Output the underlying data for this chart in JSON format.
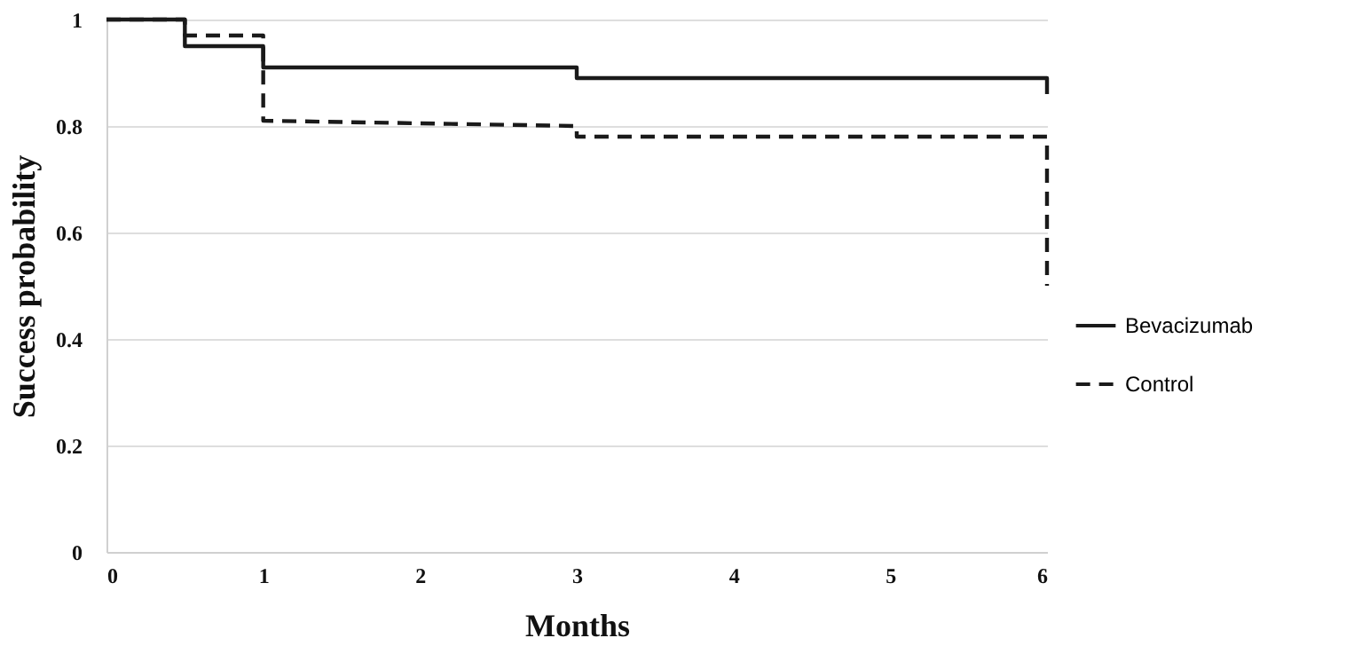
{
  "chart_data": {
    "type": "line",
    "xlabel": "Months",
    "ylabel": "Success probability",
    "xlim": [
      0,
      6
    ],
    "xticks": [
      0,
      1,
      2,
      3,
      4,
      5,
      6
    ],
    "ylim": [
      0,
      1
    ],
    "yticks": [
      0,
      0.2,
      0.4,
      0.6,
      0.8,
      1
    ],
    "grid": "y",
    "legend": "right",
    "marker": "none",
    "series": [
      {
        "name": "Bevacizumab",
        "color": "#1a1a1a",
        "line_style": "solid",
        "x": [
          0,
          0.5,
          0.5,
          1,
          1,
          3,
          3,
          6,
          6
        ],
        "values": [
          1,
          1,
          0.95,
          0.95,
          0.91,
          0.91,
          0.89,
          0.89,
          0.86
        ]
      },
      {
        "name": "Control",
        "color": "#1a1a1a",
        "line_style": "dashed",
        "x": [
          0,
          0.5,
          0.5,
          1,
          1,
          3,
          3,
          6,
          6
        ],
        "values": [
          1,
          1,
          0.97,
          0.97,
          0.81,
          0.8,
          0.78,
          0.78,
          0.5
        ]
      }
    ]
  }
}
